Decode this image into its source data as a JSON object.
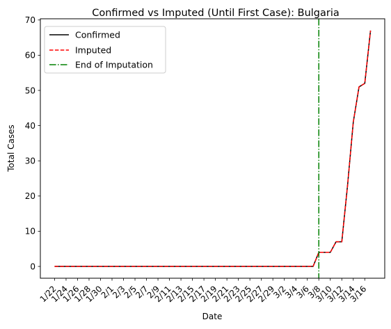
{
  "chart_data": {
    "type": "line",
    "title": "Confirmed vs Imputed (Until First Case): Bulgaria",
    "xlabel": "Date",
    "ylabel": "Total Cases",
    "ylim": [
      -3.35,
      70.35
    ],
    "yticks": [
      0,
      10,
      20,
      30,
      40,
      50,
      60,
      70
    ],
    "start_label": "1/22",
    "x": [
      "1/22",
      "1/23",
      "1/24",
      "1/25",
      "1/26",
      "1/27",
      "1/28",
      "1/29",
      "1/30",
      "1/31",
      "2/1",
      "2/2",
      "2/3",
      "2/4",
      "2/5",
      "2/6",
      "2/7",
      "2/8",
      "2/9",
      "2/10",
      "2/11",
      "2/12",
      "2/13",
      "2/14",
      "2/15",
      "2/16",
      "2/17",
      "2/18",
      "2/19",
      "2/20",
      "2/21",
      "2/22",
      "2/23",
      "2/24",
      "2/25",
      "2/26",
      "2/27",
      "2/28",
      "2/29",
      "3/1",
      "3/2",
      "3/3",
      "3/4",
      "3/5",
      "3/6",
      "3/7",
      "3/8",
      "3/9",
      "3/10",
      "3/11",
      "3/12",
      "3/13",
      "3/14",
      "3/15",
      "3/16",
      "3/17"
    ],
    "xtick_labels": [
      "1/22",
      "1/24",
      "1/26",
      "1/28",
      "1/30",
      "2/1",
      "2/3",
      "2/5",
      "2/7",
      "2/9",
      "2/11",
      "2/13",
      "2/15",
      "2/17",
      "2/19",
      "2/21",
      "2/23",
      "2/25",
      "2/27",
      "2/29",
      "3/2",
      "3/4",
      "3/6",
      "3/8",
      "3/10",
      "3/12",
      "3/14",
      "3/16"
    ],
    "series": [
      {
        "name": "Confirmed",
        "color": "#000000",
        "style": "solid",
        "values": [
          0,
          0,
          0,
          0,
          0,
          0,
          0,
          0,
          0,
          0,
          0,
          0,
          0,
          0,
          0,
          0,
          0,
          0,
          0,
          0,
          0,
          0,
          0,
          0,
          0,
          0,
          0,
          0,
          0,
          0,
          0,
          0,
          0,
          0,
          0,
          0,
          0,
          0,
          0,
          0,
          0,
          0,
          0,
          0,
          0,
          0,
          4,
          4,
          4,
          7,
          7,
          23,
          41,
          51,
          52,
          67
        ]
      },
      {
        "name": "Imputed",
        "color": "#ff0000",
        "style": "dashed",
        "values": [
          0,
          0,
          0,
          0,
          0,
          0,
          0,
          0,
          0,
          0,
          0,
          0,
          0,
          0,
          0,
          0,
          0,
          0,
          0,
          0,
          0,
          0,
          0,
          0,
          0,
          0,
          0,
          0,
          0,
          0,
          0,
          0,
          0,
          0,
          0,
          0,
          0,
          0,
          0,
          0,
          0,
          0,
          0,
          0,
          0,
          0,
          4,
          4,
          4,
          7,
          7,
          23,
          41,
          51,
          52,
          67
        ]
      }
    ],
    "vline": {
      "name": "End of Imputation",
      "x": "3/8",
      "color": "#008000",
      "style": "dashdot"
    },
    "legend": "top-left",
    "grid": false
  }
}
